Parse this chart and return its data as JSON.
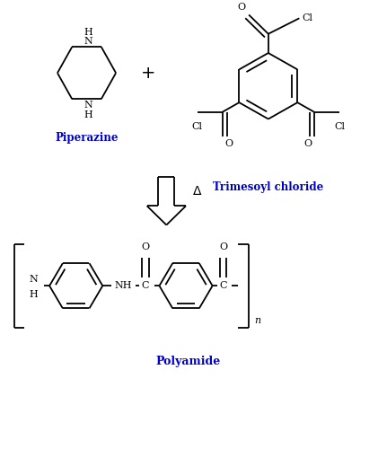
{
  "background_color": "#ffffff",
  "line_color": "#000000",
  "label_color": "#0000cc",
  "text_color": "#000000",
  "piperazine_label": "Piperazine",
  "tmc_label": "Trimesoyl chloride",
  "polyamide_label": "Polyamide",
  "delta_symbol": "Δ",
  "figsize": [
    4.21,
    5.0
  ],
  "dpi": 100
}
